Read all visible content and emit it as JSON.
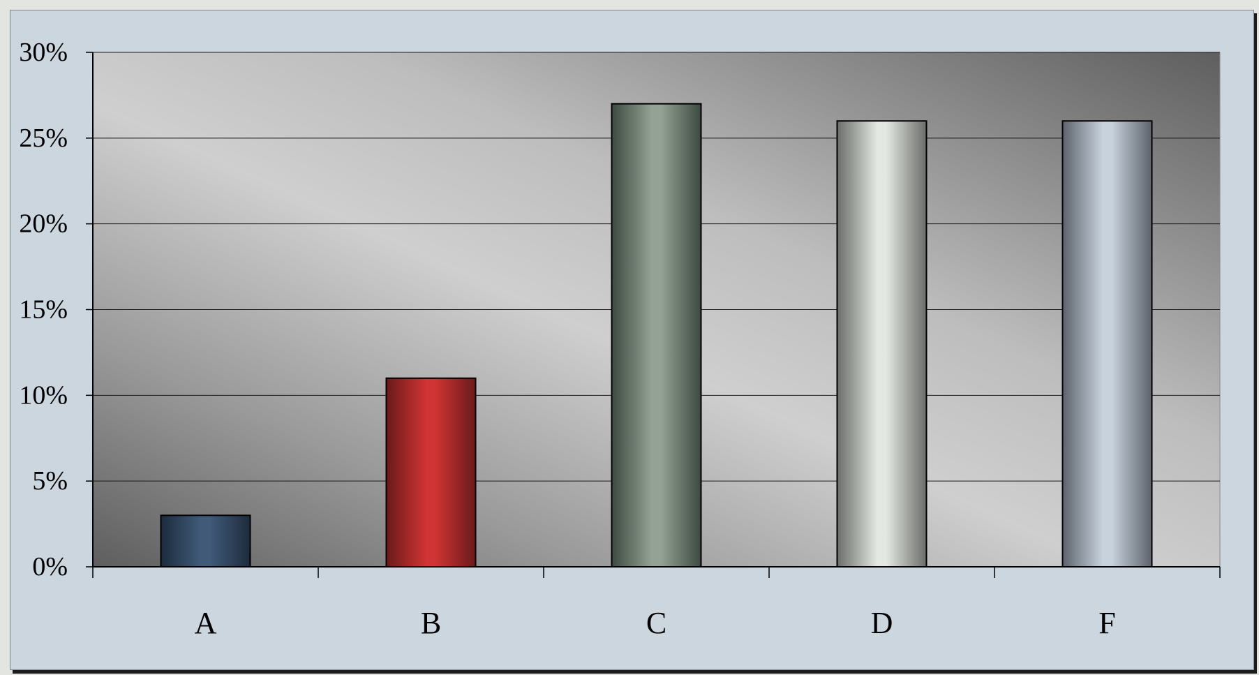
{
  "chart_data": {
    "type": "bar",
    "title": "",
    "xlabel": "",
    "ylabel": "",
    "categories": [
      "A",
      "B",
      "C",
      "D",
      "F"
    ],
    "values": [
      3,
      11,
      27,
      26,
      26
    ],
    "value_unit": "%",
    "ylim": [
      0,
      30
    ],
    "yticks": [
      0,
      5,
      10,
      15,
      20,
      25,
      30
    ],
    "ytick_labels": [
      "0%",
      "5%",
      "10%",
      "15%",
      "20%",
      "25%",
      "30%"
    ],
    "grid": true,
    "legend": "none",
    "bar_colors": [
      {
        "dark": "#1d2b3d",
        "light": "#405a78"
      },
      {
        "dark": "#6a1a1a",
        "light": "#d03434"
      },
      {
        "dark": "#3e4a41",
        "light": "#93a294"
      },
      {
        "dark": "#6a6d69",
        "light": "#e4e8e2"
      },
      {
        "dark": "#5c636c",
        "light": "#c8d2dc"
      }
    ],
    "colors": {
      "page_background": "#ccd6df",
      "plot_light": "#cfcfcf",
      "plot_dark": "#5e5e5e",
      "gridline": "#1a1a1a",
      "bar_outline": "#000000"
    }
  }
}
